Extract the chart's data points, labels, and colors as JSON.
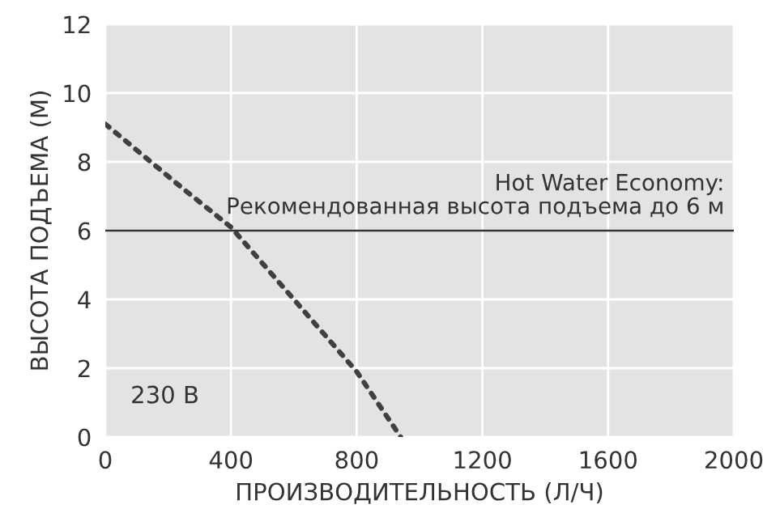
{
  "chart_data": {
    "type": "line",
    "xlabel": "ПРОИЗВОДИТЕЛЬНОСТЬ (Л/Ч)",
    "ylabel": "ВЫСОТА ПОДЪЕМА (М)",
    "x": [
      0,
      250,
      400,
      800,
      940
    ],
    "series": [
      {
        "color": "#404040",
        "values": [
          9.1,
          7.2,
          6.1,
          1.9,
          0
        ],
        "line_style": "dotted"
      }
    ],
    "xlim": [
      0,
      2000
    ],
    "ylim": [
      0,
      12
    ],
    "xticks": [
      0,
      400,
      800,
      1200,
      1600,
      2000
    ],
    "yticks": [
      0,
      2,
      4,
      6,
      8,
      10,
      12
    ],
    "grid": true,
    "ref_lines": [
      {
        "axis": "y",
        "value": 6,
        "label": "Hot Water Economy:\nРекомендованная высота подъема до 6 м",
        "color": "#333333"
      }
    ],
    "annotations": [
      "230 В"
    ]
  }
}
